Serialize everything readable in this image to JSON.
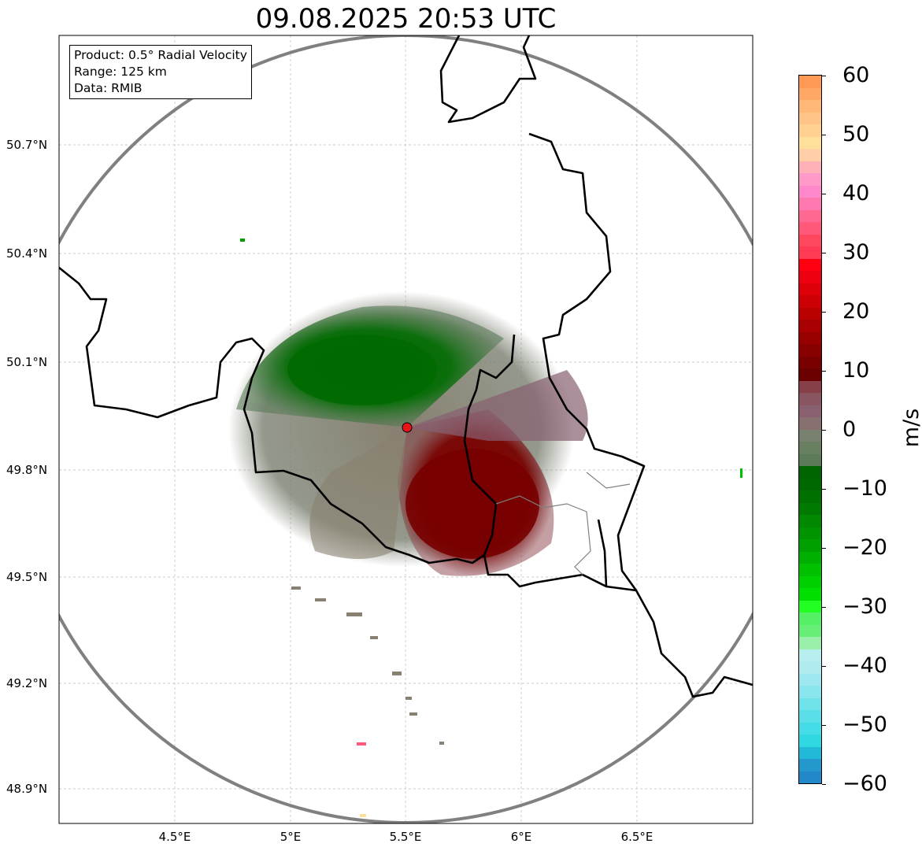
{
  "title": "09.08.2025 20:53 UTC",
  "info_box": {
    "product": "Product: 0.5° Radial Velocity",
    "range": "Range: 125 km",
    "data": "Data: RMIB"
  },
  "lat_labels": [
    "50.7°N",
    "50.4°N",
    "50.1°N",
    "49.8°N",
    "49.5°N",
    "49.2°N",
    "48.9°N"
  ],
  "lon_labels": [
    "4.5°E",
    "5°E",
    "5.5°E",
    "6°E",
    "6.5°E"
  ],
  "colorbar": {
    "label": "m/s",
    "ticks": [
      "60",
      "50",
      "40",
      "30",
      "20",
      "10",
      "0",
      "−10",
      "−20",
      "−30",
      "−40",
      "−50",
      "−60"
    ],
    "colors": [
      "#ff9955",
      "#ffa866",
      "#ffb877",
      "#ffc488",
      "#ffd090",
      "#ffe09a",
      "#ffd0a8",
      "#ffb0b8",
      "#ff9ac8",
      "#ff88cc",
      "#ff78b0",
      "#ff6890",
      "#ff5878",
      "#ff4860",
      "#ff3a55",
      "#ff0010",
      "#ee0010",
      "#dd0008",
      "#cc0005",
      "#b80000",
      "#a80000",
      "#980000",
      "#880000",
      "#780000",
      "#6a0000",
      "#884048",
      "#885560",
      "#886070",
      "#887070",
      "#788070",
      "#688060",
      "#5a7a58",
      "#006400",
      "#006800",
      "#007000",
      "#007a00",
      "#008800",
      "#009400",
      "#00a000",
      "#00b000",
      "#00c000",
      "#00d000",
      "#00e000",
      "#22ff22",
      "#55f066",
      "#66ee77",
      "#99eeaa",
      "#b8eeee",
      "#b0ecef",
      "#9ce8ee",
      "#88e6ec",
      "#70e2ea",
      "#5adfe8",
      "#44dce6",
      "#30d8e2",
      "#22b8d8",
      "#2298cc",
      "#2288c8"
    ]
  },
  "station_color": "#e8141c"
}
